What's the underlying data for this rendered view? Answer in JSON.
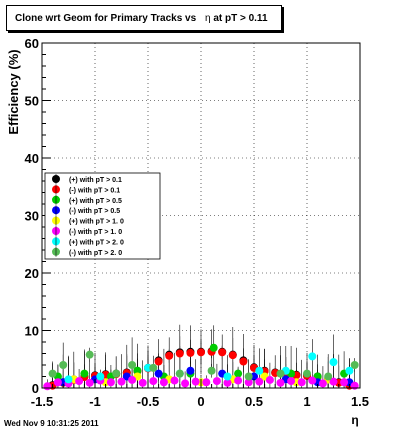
{
  "title": {
    "main": "Clone wrt Geom for Primary Tracks vs",
    "eta": "η",
    "suffix": "at pT > 0.11"
  },
  "footer": {
    "timestamp": "Wed Nov  9 10:31:25 2011"
  },
  "chart_data": {
    "type": "scatter",
    "ylabel": "Efficiency (%)",
    "xlabel": "η",
    "xlim": [
      -1.5,
      1.5
    ],
    "ylim": [
      0,
      60
    ],
    "x_ticks": [
      "-1.5",
      "-1",
      "-0.5",
      "0",
      "0.5",
      "1",
      "1.5"
    ],
    "y_ticks": [
      "0",
      "10",
      "20",
      "30",
      "40",
      "50",
      "60"
    ],
    "grid": true,
    "legend_position": "middle-left",
    "legend": [
      {
        "label": "(+) with pT > 0.1",
        "color": "#000000"
      },
      {
        "label": "(-) with pT > 0.1",
        "color": "#ff0000"
      },
      {
        "label": "(+) with pT > 0.5",
        "color": "#00cc00"
      },
      {
        "label": "(-) with pT > 0.5",
        "color": "#0000ff"
      },
      {
        "label": "(+) with pT > 1. 0",
        "color": "#ffff00"
      },
      {
        "label": "(-) with pT > 1. 0",
        "color": "#ff00ff"
      },
      {
        "label": "(+) with pT > 2. 0",
        "color": "#00ffff"
      },
      {
        "label": "(-) with pT > 2. 0",
        "color": "#55bb55"
      }
    ],
    "series": [
      {
        "name": "(+) with pT > 0.1",
        "color": "#000000",
        "x": [
          -1.4,
          -1.3,
          -1.2,
          -1.1,
          -1.0,
          -0.9,
          -0.8,
          -0.7,
          -0.6,
          -0.5,
          -0.4,
          -0.3,
          -0.2,
          -0.1,
          0.0,
          0.1,
          0.2,
          0.3,
          0.4,
          0.5,
          0.6,
          0.7,
          0.8,
          0.9,
          1.0,
          1.1,
          1.2,
          1.3,
          1.4
        ],
        "y": [
          0.5,
          1.0,
          1.5,
          2.0,
          2.2,
          2.4,
          2.5,
          2.7,
          3.0,
          3.5,
          4.8,
          5.8,
          6.2,
          6.3,
          6.3,
          6.4,
          6.3,
          5.8,
          4.8,
          3.6,
          3.0,
          2.7,
          2.5,
          2.3,
          2.2,
          2.0,
          1.6,
          1.0,
          0.5
        ]
      },
      {
        "name": "(-) with pT > 0.1",
        "color": "#ff0000",
        "x": [
          -1.4,
          -1.3,
          -1.2,
          -1.1,
          -1.0,
          -0.9,
          -0.8,
          -0.7,
          -0.6,
          -0.5,
          -0.4,
          -0.3,
          -0.2,
          -0.1,
          0.0,
          0.1,
          0.2,
          0.3,
          0.4,
          0.5,
          0.6,
          0.7,
          0.8,
          0.9,
          1.0,
          1.1,
          1.2,
          1.3,
          1.4
        ],
        "y": [
          0.4,
          0.9,
          1.4,
          1.9,
          2.1,
          2.3,
          2.4,
          2.6,
          2.9,
          3.4,
          4.6,
          5.6,
          6.0,
          6.1,
          6.2,
          6.3,
          6.2,
          5.7,
          4.6,
          3.5,
          2.9,
          2.6,
          2.4,
          2.2,
          2.1,
          1.9,
          1.5,
          0.9,
          0.4
        ]
      },
      {
        "name": "(+) with pT > 0.5",
        "color": "#00cc00",
        "x": [
          -1.35,
          -1.1,
          -0.85,
          -0.6,
          -0.35,
          -0.1,
          0.12,
          0.35,
          0.6,
          0.85,
          1.1,
          1.35
        ],
        "y": [
          2.0,
          2.5,
          2.0,
          3.0,
          2.0,
          2.5,
          7.0,
          2.5,
          2.0,
          2.5,
          2.0,
          2.5
        ]
      },
      {
        "name": "(-) with pT > 0.5",
        "color": "#0000ff",
        "x": [
          -1.3,
          -1.0,
          -0.7,
          -0.4,
          -0.1,
          0.2,
          0.5,
          0.8,
          1.1,
          1.4
        ],
        "y": [
          1.0,
          1.5,
          2.0,
          2.5,
          3.0,
          2.5,
          2.0,
          1.5,
          1.0,
          1.0
        ]
      },
      {
        "name": "(+) with pT > 1. 0",
        "color": "#ffff00",
        "x": [
          -1.2,
          -0.9,
          -0.6,
          -0.3,
          0.0,
          0.3,
          0.6,
          0.9,
          1.2
        ],
        "y": [
          1.5,
          1.0,
          2.0,
          1.5,
          1.0,
          1.5,
          2.0,
          1.0,
          1.5
        ]
      },
      {
        "name": "(-) with pT > 1. 0",
        "color": "#ff00ff",
        "x": [
          -1.45,
          -1.35,
          -1.25,
          -1.15,
          -1.05,
          -0.95,
          -0.85,
          -0.75,
          -0.65,
          -0.55,
          -0.45,
          -0.35,
          -0.25,
          -0.15,
          -0.05,
          0.05,
          0.15,
          0.25,
          0.35,
          0.45,
          0.55,
          0.65,
          0.75,
          0.85,
          0.95,
          1.05,
          1.15,
          1.25,
          1.35,
          1.45
        ],
        "y": [
          0.3,
          1.0,
          0.8,
          1.2,
          0.9,
          1.3,
          1.0,
          1.1,
          1.4,
          0.9,
          1.2,
          1.0,
          1.3,
          0.8,
          1.1,
          1.0,
          1.2,
          0.9,
          1.3,
          1.0,
          1.1,
          1.4,
          0.9,
          1.2,
          1.0,
          1.3,
          0.8,
          1.1,
          1.0,
          0.4
        ]
      },
      {
        "name": "(+) with pT > 2. 0",
        "color": "#00ffff",
        "x": [
          -1.25,
          -0.95,
          -0.5,
          -0.2,
          0.25,
          0.55,
          0.8,
          1.05,
          1.25,
          1.4
        ],
        "y": [
          1.5,
          2.0,
          3.5,
          2.5,
          2.0,
          3.0,
          3.0,
          5.5,
          4.5,
          3.0
        ]
      },
      {
        "name": "(-) with pT > 2. 0",
        "color": "#55bb55",
        "x": [
          -1.4,
          -1.3,
          -1.05,
          -0.8,
          -0.65,
          -0.45,
          -0.2,
          0.1,
          0.45,
          0.75,
          1.0,
          1.2,
          1.45
        ],
        "y": [
          2.5,
          4.0,
          5.8,
          2.5,
          4.0,
          3.5,
          2.5,
          3.0,
          2.0,
          2.5,
          2.5,
          2.0,
          4.0
        ]
      }
    ]
  }
}
